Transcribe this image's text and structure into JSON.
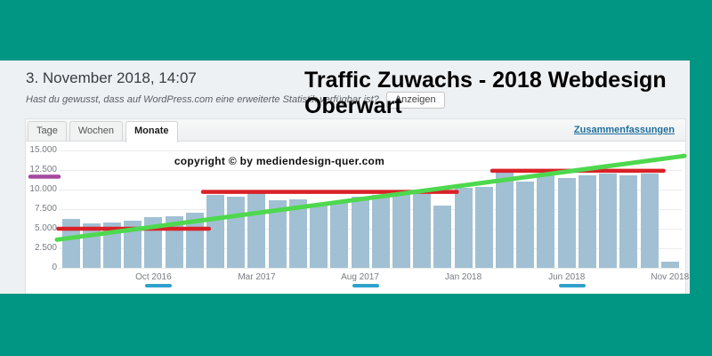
{
  "colors": {
    "frame": "#009684",
    "background": "#eef1f3",
    "link": "#1e6e9c"
  },
  "header": {
    "date": "3. November 2018, 14:07",
    "hint": "Hast du gewusst, dass auf WordPress.com eine erweiterte Statistik verfügbar ist?",
    "hint_button": "Anzeigen",
    "title": "Traffic Zuwachs - 2018 Webdesign Oberwart"
  },
  "panel": {
    "tabs": [
      {
        "label": "Tage",
        "active": false
      },
      {
        "label": "Wochen",
        "active": false
      },
      {
        "label": "Monate",
        "active": true
      }
    ],
    "summary_link": "Zusammenfassungen",
    "watermark": "copyright ©  by  mediendesign-quer.com"
  },
  "chart_data": {
    "type": "bar",
    "title": "Traffic Zuwachs - 2018 Webdesign Oberwart",
    "ylabel": "",
    "xlabel": "",
    "ylim": [
      0,
      15000
    ],
    "grid": true,
    "bar_color": "#a2c0d3",
    "y_ticks": [
      "15.000",
      "12.500",
      "10.000",
      "7.500",
      "5.000",
      "2.500",
      "0"
    ],
    "x_tick_labels": [
      "Oct 2016",
      "Mar 2017",
      "Aug 2017",
      "Jan 2018",
      "Jun 2018",
      "Nov 2018"
    ],
    "categories": [
      "Jun 2016",
      "Jul 2016",
      "Aug 2016",
      "Sep 2016",
      "Oct 2016",
      "Nov 2016",
      "Dec 2016",
      "Jan 2017",
      "Feb 2017",
      "Mar 2017",
      "Apr 2017",
      "May 2017",
      "Jun 2017",
      "Jul 2017",
      "Aug 2017",
      "Sep 2017",
      "Oct 2017",
      "Nov 2017",
      "Dec 2017",
      "Jan 2018",
      "Feb 2018",
      "Mar 2018",
      "Apr 2018",
      "May 2018",
      "Jun 2018",
      "Jul 2018",
      "Aug 2018",
      "Sep 2018",
      "Oct 2018",
      "Nov 2018"
    ],
    "values": [
      6200,
      5700,
      5800,
      6050,
      6450,
      6600,
      7100,
      9350,
      9100,
      9750,
      8600,
      8700,
      7900,
      8550,
      9100,
      9300,
      9550,
      9450,
      7950,
      10200,
      10300,
      12200,
      11000,
      11900,
      11450,
      11800,
      12100,
      11800,
      12100,
      850
    ],
    "annotations": {
      "trend_line": {
        "color": "#4ed84e",
        "from_value": 3600,
        "to_value": 14300
      },
      "level_lines": [
        {
          "color": "#da2128",
          "value": 5000,
          "from": "Jun 2016",
          "to": "Dec 2016"
        },
        {
          "color": "#da2128",
          "value": 9700,
          "from": "Jan 2017",
          "to": "Dec 2017"
        },
        {
          "color": "#da2128",
          "value": 12400,
          "from": "Mar 2018",
          "to": "Oct 2018"
        }
      ],
      "y_axis_highlight": {
        "color": "#a3489f",
        "tick": "12.500"
      },
      "x_axis_highlights": [
        {
          "color": "#2ea2cc",
          "month": "Oct 2016"
        },
        {
          "color": "#2ea2cc",
          "month": "Aug 2017"
        },
        {
          "color": "#2ea2cc",
          "month": "Jun 2018"
        }
      ]
    }
  }
}
